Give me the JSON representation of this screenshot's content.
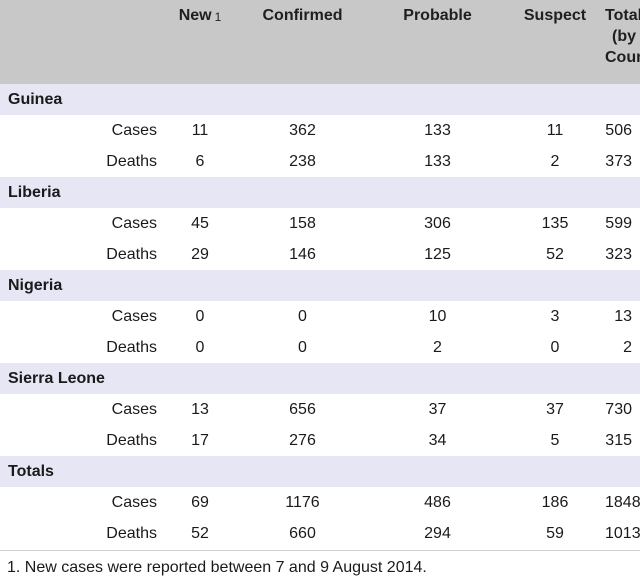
{
  "headers": {
    "new": "New",
    "new_note": "1",
    "confirmed": "Confirmed",
    "probable": "Probable",
    "suspect": "Suspect",
    "totals_line1": "Totals",
    "totals_line2": "(by",
    "totals_line3": "Country)"
  },
  "labels": {
    "cases": "Cases",
    "deaths": "Deaths"
  },
  "groups": [
    {
      "name": "Guinea",
      "cases": {
        "new": "11",
        "confirmed": "362",
        "probable": "133",
        "suspect": "11",
        "total": "506"
      },
      "deaths": {
        "new": "6",
        "confirmed": "238",
        "probable": "133",
        "suspect": "2",
        "total": "373"
      }
    },
    {
      "name": "Liberia",
      "cases": {
        "new": "45",
        "confirmed": "158",
        "probable": "306",
        "suspect": "135",
        "total": "599"
      },
      "deaths": {
        "new": "29",
        "confirmed": "146",
        "probable": "125",
        "suspect": "52",
        "total": "323"
      }
    },
    {
      "name": "Nigeria",
      "cases": {
        "new": "0",
        "confirmed": "0",
        "probable": "10",
        "suspect": "3",
        "total": "13"
      },
      "deaths": {
        "new": "0",
        "confirmed": "0",
        "probable": "2",
        "suspect": "0",
        "total": "2"
      }
    },
    {
      "name": "Sierra Leone",
      "cases": {
        "new": "13",
        "confirmed": "656",
        "probable": "37",
        "suspect": "37",
        "total": "730"
      },
      "deaths": {
        "new": "17",
        "confirmed": "276",
        "probable": "34",
        "suspect": "5",
        "total": "315"
      }
    },
    {
      "name": "Totals",
      "cases": {
        "new": "69",
        "confirmed": "1176",
        "probable": "486",
        "suspect": "186",
        "total": "1848"
      },
      "deaths": {
        "new": "52",
        "confirmed": "660",
        "probable": "294",
        "suspect": "59",
        "total": "1013"
      }
    }
  ],
  "footnote": "1. New cases were reported between 7 and 9 August 2014.",
  "colors": {
    "header_bg": "#c8c8c8",
    "group_row_bg": "#e6e6f5",
    "data_row_bg": "#ffffff"
  }
}
